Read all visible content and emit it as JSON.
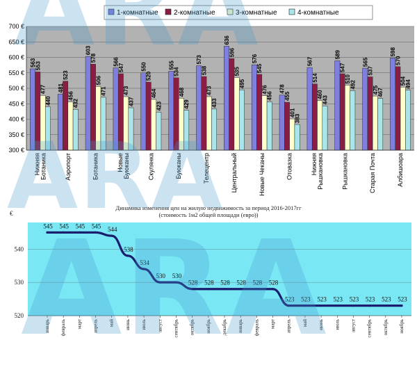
{
  "watermark": "ARA",
  "colors": {
    "series": [
      "#7f7fe0",
      "#8b1d45",
      "#ffffcc",
      "#a9e5e9"
    ],
    "bar_border": "#2a2a2a",
    "top_panel": "#b2b2b2",
    "lower_bg": "#7ae7f5",
    "line": "#1b1e6e"
  },
  "chart_data": [
    {
      "type": "bar",
      "categories": [
        "Нижняя Ботаника",
        "Аэропорт",
        "Ботаника",
        "Новые Буюканы",
        "Скулянка",
        "Буюканы",
        "Телецентр",
        "Центральный",
        "Новые Чеканы",
        "Отовазка",
        "Нижняя Рышкановка",
        "Рышкановка",
        "Старая Почта",
        "Албишоара"
      ],
      "categories_lines": [
        [
          "Нижняя",
          "Ботаника"
        ],
        [
          "Аэропорт"
        ],
        [
          "Ботаника"
        ],
        [
          "Новые",
          "Буюканы"
        ],
        [
          "Скулянка"
        ],
        [
          "Буюканы"
        ],
        [
          "Телецентр"
        ],
        [
          "Центральный"
        ],
        [
          "Новые Чеканы"
        ],
        [
          "Отовазка"
        ],
        [
          "Нижняя",
          "Рышкановка"
        ],
        [
          "Рышкановка"
        ],
        [
          "Старая Почта"
        ],
        [
          "Албишоара"
        ]
      ],
      "series": [
        {
          "name": "1-комнатные",
          "values": [
            563,
            481,
            603,
            566,
            550,
            555,
            573,
            636,
            576,
            478,
            567,
            589,
            565,
            598
          ]
        },
        {
          "name": "2-комнатные",
          "values": [
            553,
            523,
            578,
            547,
            520,
            534,
            538,
            596,
            545,
            455,
            514,
            547,
            537,
            570
          ]
        },
        {
          "name": "3-комнатные",
          "values": [
            477,
            456,
            506,
            473,
            464,
            468,
            473,
            535,
            476,
            401,
            460,
            510,
            475,
            504
          ]
        },
        {
          "name": "4-комнатные",
          "values": [
            440,
            432,
            471,
            437,
            423,
            429,
            433,
            495,
            456,
            383,
            443,
            492,
            467,
            494
          ]
        }
      ],
      "ylim": [
        300,
        700
      ],
      "yticks": [
        "300 €",
        "350 €",
        "400 €",
        "450 €",
        "500 €",
        "550 €",
        "600 €",
        "650 €",
        "700 €"
      ],
      "grid": true,
      "legend": "top"
    },
    {
      "type": "line",
      "title": "Динамика изменения цен на жилую недвижимость за период 2016-2017гг",
      "subtitle": "(стоимость 1м2 общей площади (евро))",
      "ylabel": "€",
      "x": [
        "январь",
        "февраль",
        "март",
        "апрель",
        "май",
        "июнь",
        "июль",
        "август",
        "сентябрь",
        "октябрь",
        "ноябрь",
        "декабрь",
        "январь",
        "февраль",
        "март",
        "апрель",
        "май",
        "июнь",
        "июль",
        "август",
        "сентябрь",
        "октябрь",
        "ноябрь"
      ],
      "values": [
        545,
        545,
        545,
        545,
        544,
        538,
        534,
        530,
        530,
        528,
        528,
        528,
        528,
        528,
        528,
        523,
        523,
        523,
        523,
        523,
        523,
        523,
        523
      ],
      "ylim": [
        520,
        548
      ],
      "yticks": [
        "520",
        "530",
        "540"
      ],
      "grid": true
    }
  ]
}
